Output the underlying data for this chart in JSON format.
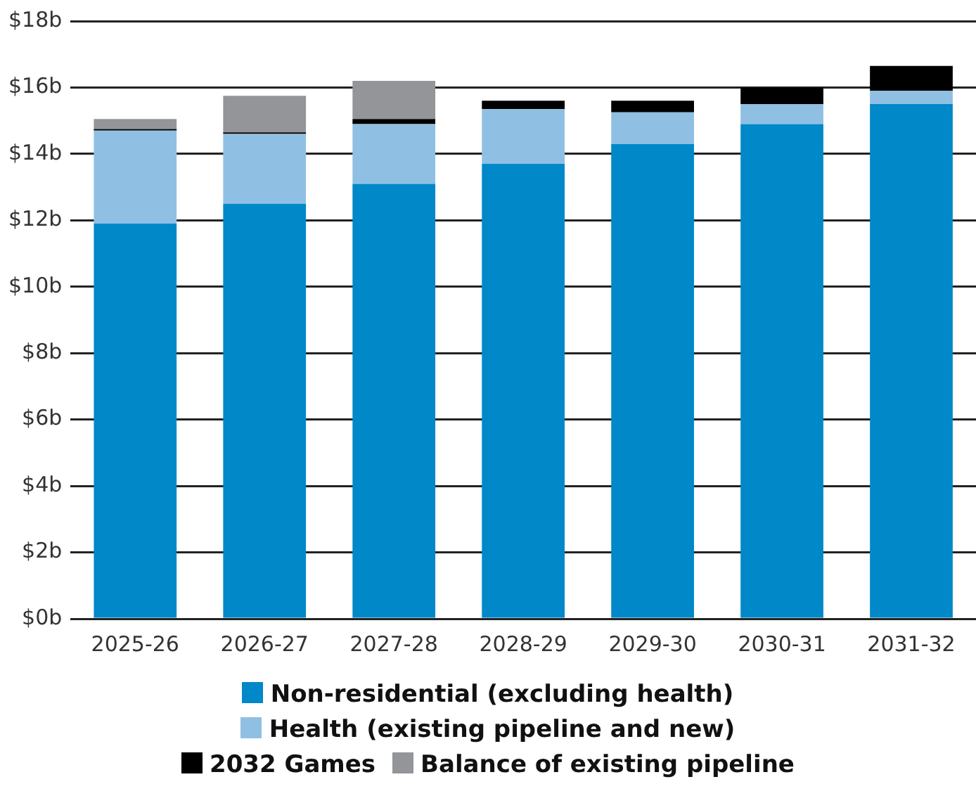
{
  "chart_data": {
    "type": "bar",
    "stacked": true,
    "categories": [
      "2025-26",
      "2026-27",
      "2027-28",
      "2028-29",
      "2029-30",
      "2030-31",
      "2031-32"
    ],
    "series": [
      {
        "name": "Non-residential (excluding health)",
        "color": "#0088c9",
        "values": [
          11.9,
          12.5,
          13.1,
          13.7,
          14.3,
          14.9,
          15.5
        ]
      },
      {
        "name": "Health (existing pipeline and new)",
        "color": "#8fc0e3",
        "values": [
          2.8,
          2.1,
          1.8,
          1.65,
          0.95,
          0.6,
          0.4
        ]
      },
      {
        "name": "2032 Games",
        "color": "#000000",
        "values": [
          0.05,
          0.05,
          0.15,
          0.25,
          0.35,
          0.5,
          0.75
        ]
      },
      {
        "name": "Balance of existing pipeline",
        "color": "#939598",
        "values": [
          0.3,
          1.1,
          1.15,
          0,
          0,
          0,
          0
        ]
      }
    ],
    "ylim": [
      0,
      18
    ],
    "yticks": [
      {
        "value": 0,
        "label": "$0b"
      },
      {
        "value": 2,
        "label": "$2b"
      },
      {
        "value": 4,
        "label": "$4b"
      },
      {
        "value": 6,
        "label": "$6b"
      },
      {
        "value": 8,
        "label": "$8b"
      },
      {
        "value": 10,
        "label": "$10b"
      },
      {
        "value": 12,
        "label": "$12b"
      },
      {
        "value": 14,
        "label": "$14b"
      },
      {
        "value": 16,
        "label": "$16b"
      },
      {
        "value": 18,
        "label": "$18b"
      }
    ],
    "grid": "y",
    "legend": "bottom"
  }
}
